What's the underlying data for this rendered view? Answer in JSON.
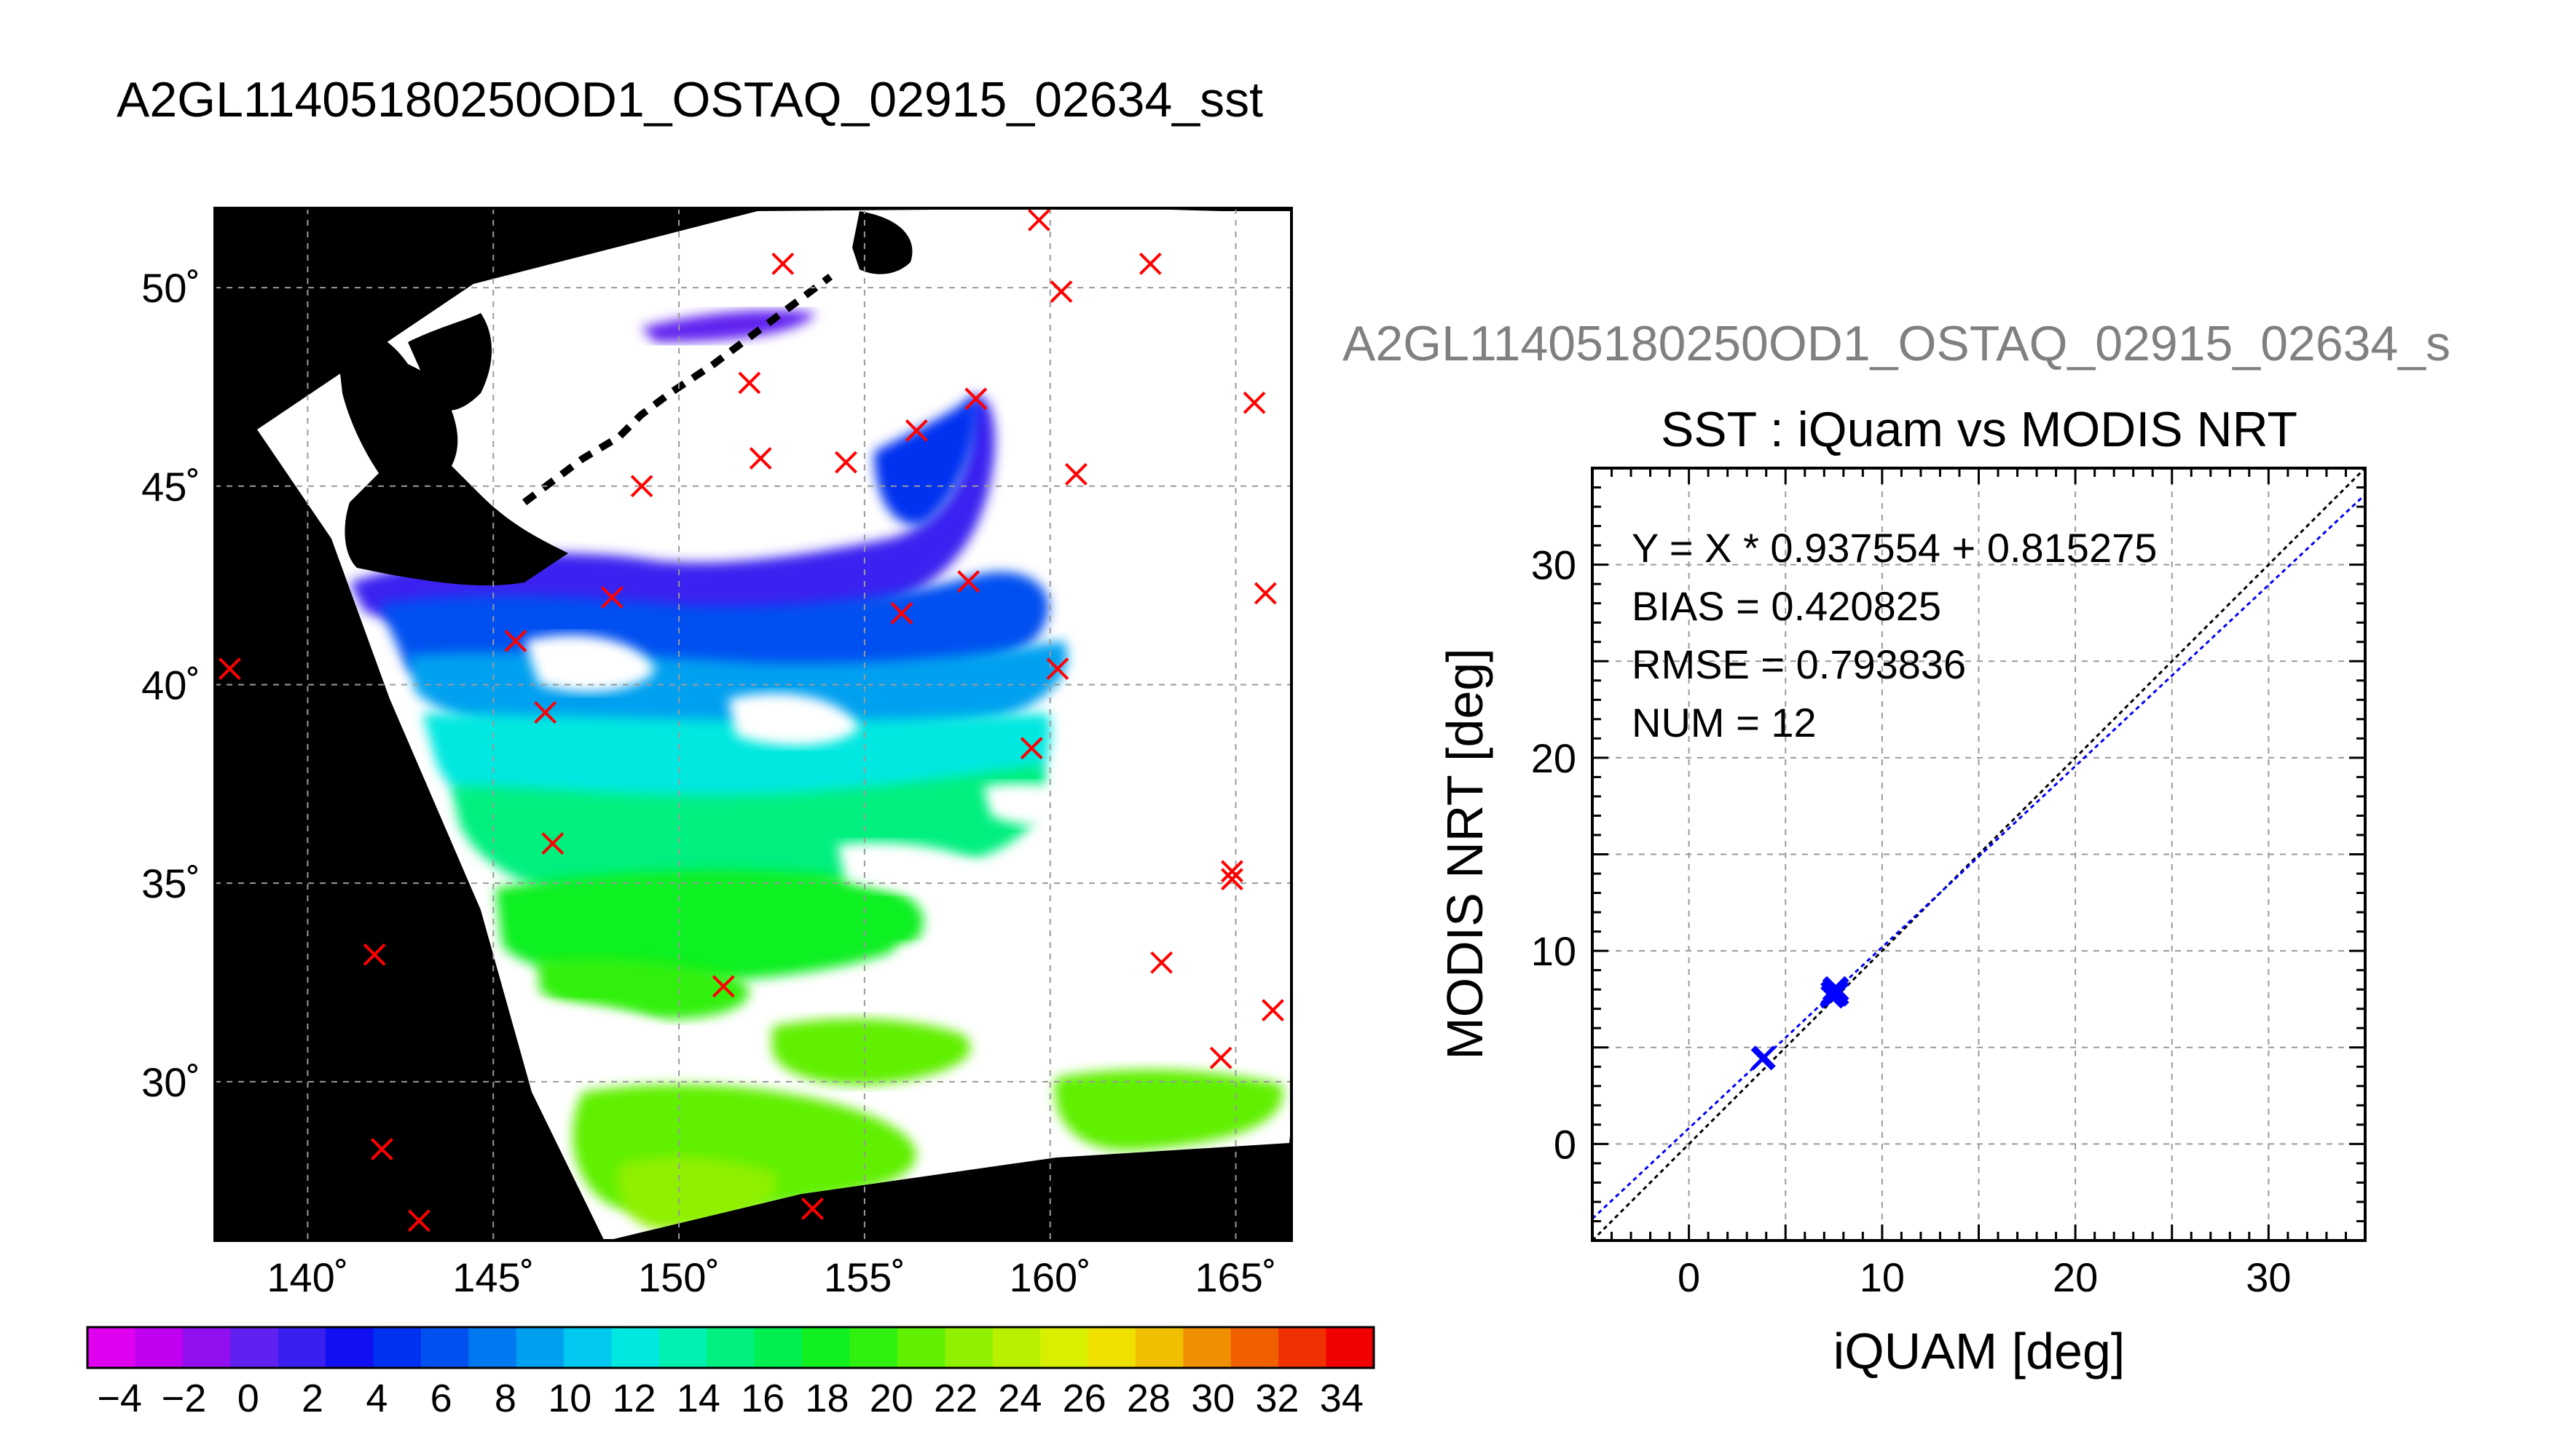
{
  "figure": {
    "main_title": "A2GL11405180250OD1_OSTAQ_02915_02634_sst",
    "sub_title": "A2GL11405180250OD1_OSTAQ_02915_02634_s"
  },
  "chart_data": [
    {
      "type": "map",
      "title": "A2GL11405180250OD1_OSTAQ_02915_02634_sst",
      "lon_range": [
        137.5,
        166.5
      ],
      "lat_range": [
        26,
        52
      ],
      "lon_ticks": [
        140,
        145,
        150,
        155,
        160,
        165
      ],
      "lat_ticks": [
        30,
        35,
        40,
        45,
        50
      ],
      "lon_tick_labels": [
        "140˚",
        "145˚",
        "150˚",
        "155˚",
        "160˚",
        "165˚"
      ],
      "lat_tick_labels": [
        "30˚",
        "35˚",
        "40˚",
        "45˚",
        "50˚"
      ],
      "grid": true,
      "marker_color": "#ff0000",
      "stations": [
        [
          137.9,
          40.4
        ],
        [
          141.8,
          33.2
        ],
        [
          142.0,
          28.3
        ],
        [
          143.0,
          26.5
        ],
        [
          145.6,
          41.1
        ],
        [
          146.4,
          39.3
        ],
        [
          146.6,
          36.0
        ],
        [
          148.2,
          42.2
        ],
        [
          149.0,
          45.0
        ],
        [
          151.2,
          32.4
        ],
        [
          151.9,
          47.6
        ],
        [
          152.2,
          45.7
        ],
        [
          152.8,
          50.6
        ],
        [
          153.6,
          26.8
        ],
        [
          154.5,
          45.6
        ],
        [
          156.0,
          41.8
        ],
        [
          156.4,
          46.4
        ],
        [
          157.8,
          42.6
        ],
        [
          158.0,
          47.2
        ],
        [
          159.5,
          38.4
        ],
        [
          159.7,
          51.7
        ],
        [
          160.2,
          40.4
        ],
        [
          160.3,
          49.9
        ],
        [
          160.7,
          45.3
        ],
        [
          162.7,
          50.6
        ],
        [
          163.0,
          33.0
        ],
        [
          164.6,
          30.6
        ],
        [
          164.9,
          35.3
        ],
        [
          164.9,
          35.1
        ],
        [
          165.5,
          47.1
        ],
        [
          165.8,
          42.3
        ],
        [
          166.0,
          31.8
        ]
      ]
    },
    {
      "type": "colorbar",
      "range": [
        -5,
        35
      ],
      "tick_labels": [
        "−4",
        "−2",
        "0",
        "2",
        "4",
        "6",
        "8",
        "10",
        "12",
        "14",
        "16",
        "18",
        "20",
        "22",
        "24",
        "26",
        "28",
        "30",
        "32",
        "34"
      ],
      "tick_values": [
        -4,
        -2,
        0,
        2,
        4,
        6,
        8,
        10,
        12,
        14,
        16,
        18,
        20,
        22,
        24,
        26,
        28,
        30,
        32,
        34
      ],
      "colors": [
        "#e000f0",
        "#c000f0",
        "#9010f0",
        "#6020f0",
        "#3a20f0",
        "#1010f0",
        "#0030f0",
        "#0050f0",
        "#0078f0",
        "#00a0f0",
        "#00c8f0",
        "#00e8e0",
        "#00f0b0",
        "#00f080",
        "#00f050",
        "#10f020",
        "#30f010",
        "#60f000",
        "#90f000",
        "#b8f000",
        "#d8f000",
        "#f0e000",
        "#f0c000",
        "#f09000",
        "#f06000",
        "#f03000",
        "#f00000"
      ]
    },
    {
      "type": "scatter",
      "title": "SST : iQuam vs MODIS NRT",
      "xlabel": "iQUAM [deg]",
      "ylabel": "MODIS NRT [deg]",
      "xlim": [
        -5,
        35
      ],
      "ylim": [
        -5,
        35
      ],
      "x_ticks": [
        0,
        10,
        20,
        30
      ],
      "y_ticks": [
        0,
        10,
        20,
        30
      ],
      "grid": true,
      "annotations": [
        "Y = X * 0.937554 + 0.815275",
        "BIAS = 0.420825",
        "RMSE = 0.793836",
        "NUM = 12"
      ],
      "fit": {
        "slope": 0.937554,
        "intercept": 0.815275,
        "color": "#0000ff"
      },
      "identity_line_color": "#000000",
      "point_color": "#0000ff",
      "points": [
        [
          3.8,
          4.4
        ],
        [
          3.9,
          4.5
        ],
        [
          7.4,
          7.8
        ],
        [
          7.5,
          8.0
        ],
        [
          7.6,
          7.7
        ],
        [
          7.5,
          7.9
        ],
        [
          7.6,
          8.1
        ],
        [
          7.7,
          7.8
        ],
        [
          7.4,
          7.6
        ],
        [
          7.6,
          7.9
        ],
        [
          7.5,
          7.7
        ],
        [
          7.7,
          8.0
        ]
      ]
    }
  ]
}
